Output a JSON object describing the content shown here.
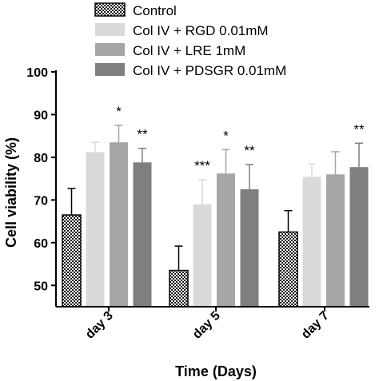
{
  "chart_data": {
    "type": "bar",
    "xlabel": "Time (Days)",
    "ylabel": "Cell viability (%)",
    "ylim": [
      45,
      100
    ],
    "yticks": [
      "50",
      "60",
      "70",
      "80",
      "90",
      "100"
    ],
    "categories": [
      "day 3",
      "day 5",
      "day 7"
    ],
    "series": [
      {
        "name": "Control",
        "fill": "pattern",
        "values": [
          66.5,
          53.5,
          62.5
        ],
        "errors": [
          6.2,
          5.7,
          5.0
        ]
      },
      {
        "name": "Col IV + RGD 0.01mM",
        "fill": "#d9d9d9",
        "values": [
          81.2,
          69.0,
          75.4
        ],
        "errors": [
          2.3,
          5.7,
          3.0
        ]
      },
      {
        "name": "Col IV + LRE 1mM",
        "fill": "#a6a6a6",
        "values": [
          83.5,
          76.2,
          76.0
        ],
        "errors": [
          4.0,
          5.6,
          5.3
        ]
      },
      {
        "name": "Col IV + PDSGR 0.01mM",
        "fill": "#7f7f7f",
        "values": [
          78.8,
          72.5,
          77.7
        ],
        "errors": [
          3.3,
          5.8,
          5.6
        ]
      }
    ],
    "significance": [
      [
        "",
        "",
        "*",
        "**"
      ],
      [
        "",
        "***",
        "*",
        "**"
      ],
      [
        "",
        "",
        "",
        "**"
      ]
    ],
    "legend_position": "top",
    "grid": false
  }
}
